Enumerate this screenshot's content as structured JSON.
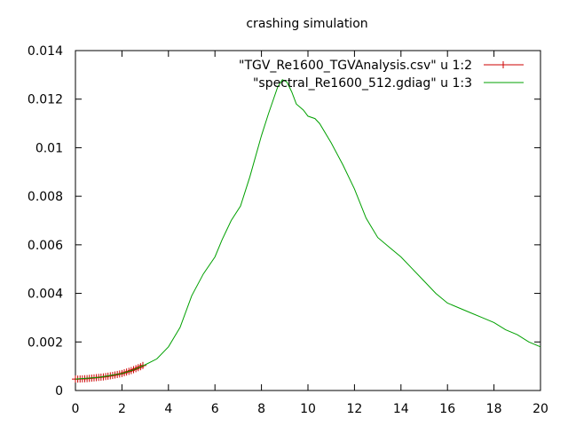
{
  "chart_data": {
    "type": "line",
    "title": "crashing simulation",
    "xlabel": "",
    "ylabel": "",
    "xlim": [
      0,
      20
    ],
    "ylim": [
      0,
      0.014
    ],
    "xticks": [
      0,
      2,
      4,
      6,
      8,
      10,
      12,
      14,
      16,
      18,
      20
    ],
    "yticks": [
      0,
      0.002,
      0.004,
      0.006,
      0.008,
      0.01,
      0.012,
      0.014
    ],
    "xtick_labels": [
      "0",
      "2",
      "4",
      "6",
      "8",
      "10",
      "12",
      "14",
      "16",
      "18",
      "20"
    ],
    "ytick_labels": [
      "0",
      "0.002",
      "0.004",
      "0.006",
      "0.008",
      "0.01",
      "0.012",
      "0.014"
    ],
    "grid": false,
    "legend_position": "top-right",
    "series": [
      {
        "name": "\"TGV_Re1600_TGVAnalysis.csv\" u 1:2",
        "color": "#cc0000",
        "marker": "plus",
        "x": [
          0,
          0.1,
          0.2,
          0.3,
          0.4,
          0.5,
          0.6,
          0.7,
          0.8,
          0.9,
          1.0,
          1.1,
          1.2,
          1.3,
          1.4,
          1.5,
          1.6,
          1.7,
          1.8,
          1.9,
          2.0,
          2.1,
          2.2,
          2.3,
          2.4,
          2.5,
          2.6,
          2.7,
          2.8,
          2.9
        ],
        "y": [
          0.00047,
          0.00047,
          0.000475,
          0.00048,
          0.000485,
          0.00049,
          0.0005,
          0.00051,
          0.00052,
          0.00053,
          0.00054,
          0.00055,
          0.00056,
          0.000575,
          0.00059,
          0.000605,
          0.00062,
          0.00064,
          0.00066,
          0.00068,
          0.0007,
          0.00073,
          0.00076,
          0.00079,
          0.00082,
          0.00086,
          0.0009,
          0.00094,
          0.00098,
          0.00103
        ]
      },
      {
        "name": "\"spectral_Re1600_512.gdiag\" u 1:3",
        "color": "#00a000",
        "marker": "none",
        "x": [
          0,
          1,
          2,
          2.5,
          3,
          3.5,
          4,
          4.5,
          5,
          5.5,
          6,
          6.3,
          6.7,
          7.1,
          7.5,
          8,
          8.3,
          8.7,
          8.9,
          9.1,
          9.3,
          9.5,
          9.8,
          10,
          10.3,
          10.5,
          11,
          11.5,
          12,
          12.5,
          13,
          13.5,
          14,
          14.5,
          15,
          15.5,
          16,
          16.5,
          17,
          17.5,
          18,
          18.5,
          19,
          19.5,
          20
        ],
        "y": [
          0.00047,
          0.00054,
          0.0007,
          0.00085,
          0.00106,
          0.0013,
          0.0018,
          0.0026,
          0.0039,
          0.0048,
          0.0055,
          0.0062,
          0.007,
          0.0076,
          0.0088,
          0.0105,
          0.0114,
          0.0125,
          0.0128,
          0.0127,
          0.0123,
          0.0118,
          0.01155,
          0.0113,
          0.0112,
          0.011,
          0.0102,
          0.0093,
          0.0083,
          0.0071,
          0.0063,
          0.0059,
          0.0055,
          0.005,
          0.0045,
          0.004,
          0.0036,
          0.0034,
          0.0032,
          0.003,
          0.0028,
          0.0025,
          0.0023,
          0.002,
          0.0018
        ]
      }
    ]
  }
}
